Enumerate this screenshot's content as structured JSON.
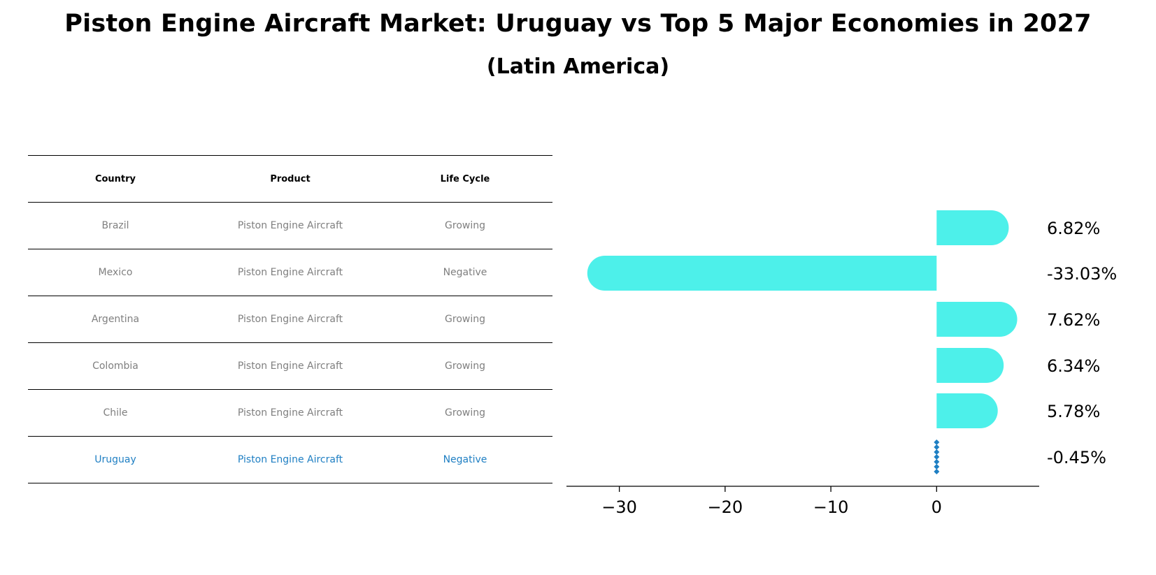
{
  "title": "Piston Engine Aircraft Market: Uruguay vs Top 5 Major Economies in 2027",
  "subtitle": "(Latin America)",
  "table": {
    "headers": [
      "Country",
      "Product",
      "Life Cycle"
    ],
    "rows": [
      {
        "country": "Brazil",
        "product": "Piston Engine Aircraft",
        "life_cycle": "Growing"
      },
      {
        "country": "Mexico",
        "product": "Piston Engine Aircraft",
        "life_cycle": "Negative"
      },
      {
        "country": "Argentina",
        "product": "Piston Engine Aircraft",
        "life_cycle": "Growing"
      },
      {
        "country": "Colombia",
        "product": "Piston Engine Aircraft",
        "life_cycle": "Growing"
      },
      {
        "country": "Chile",
        "product": "Piston Engine Aircraft",
        "life_cycle": "Growing"
      },
      {
        "country": "Uruguay",
        "product": "Piston Engine Aircraft",
        "life_cycle": "Negative"
      }
    ]
  },
  "colors": {
    "bar": "#4df0ea",
    "highlight": "#1f7fc3",
    "text_muted": "#7f7f7f"
  },
  "chart_data": {
    "type": "bar",
    "orientation": "horizontal",
    "categories": [
      "Brazil",
      "Mexico",
      "Argentina",
      "Colombia",
      "Chile",
      "Uruguay"
    ],
    "values": [
      6.82,
      -33.03,
      7.62,
      6.34,
      5.78,
      -0.45
    ],
    "value_labels": [
      "6.82%",
      "-33.03%",
      "7.62%",
      "6.34%",
      "5.78%",
      "-0.45%"
    ],
    "xlim": [
      -35,
      9.7
    ],
    "xticks": [
      -30,
      -20,
      -10,
      0
    ],
    "xtick_labels": [
      "−30",
      "−20",
      "−10",
      "0"
    ],
    "highlight_category": "Uruguay",
    "grid": false
  }
}
